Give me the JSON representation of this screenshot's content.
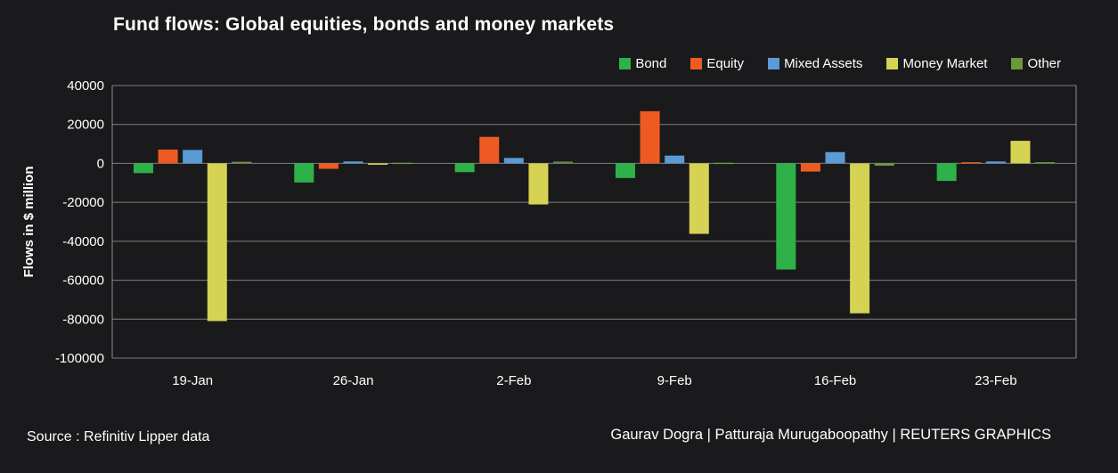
{
  "title": "Fund flows: Global equities, bonds and money markets",
  "footer": {
    "source": "Source : Refinitiv Lipper data",
    "credits": "Gaurav Dogra | Patturaja Murugaboopathy | REUTERS GRAPHICS"
  },
  "colors": {
    "background": "#1a1a1c",
    "text": "#ffffff",
    "gridline": "#7f7f7f",
    "plot_border": "#8f8f8f"
  },
  "chart_data": {
    "type": "bar",
    "title": "Fund flows: Global equities, bonds and money markets",
    "categories": [
      "19-Jan",
      "26-Jan",
      "2-Feb",
      "9-Feb",
      "16-Feb",
      "23-Feb"
    ],
    "series": [
      {
        "name": "Bond",
        "color": "#2fb14a",
        "values": [
          -5000,
          -9800,
          -4500,
          -7500,
          -54500,
          -9000
        ]
      },
      {
        "name": "Equity",
        "color": "#ee5b22",
        "values": [
          7100,
          -2800,
          13600,
          26800,
          -4200,
          300
        ]
      },
      {
        "name": "Mixed Assets",
        "color": "#5b9bd5",
        "values": [
          6900,
          1000,
          2800,
          4000,
          5800,
          1000
        ]
      },
      {
        "name": "Money Market",
        "color": "#d6d254",
        "values": [
          -81000,
          -700,
          -21100,
          -36200,
          -77000,
          11600
        ]
      },
      {
        "name": "Other",
        "color": "#6e973e",
        "values": [
          500,
          -300,
          600,
          -500,
          -1200,
          300
        ]
      }
    ],
    "xlabel": "",
    "ylabel": "Flows in $ million",
    "ylim": [
      -100000,
      40000
    ],
    "ytick_step": 20000,
    "yticks": [
      40000,
      20000,
      0,
      -20000,
      -40000,
      -60000,
      -80000,
      -100000
    ],
    "grid": true,
    "legend_position": "top-right"
  }
}
